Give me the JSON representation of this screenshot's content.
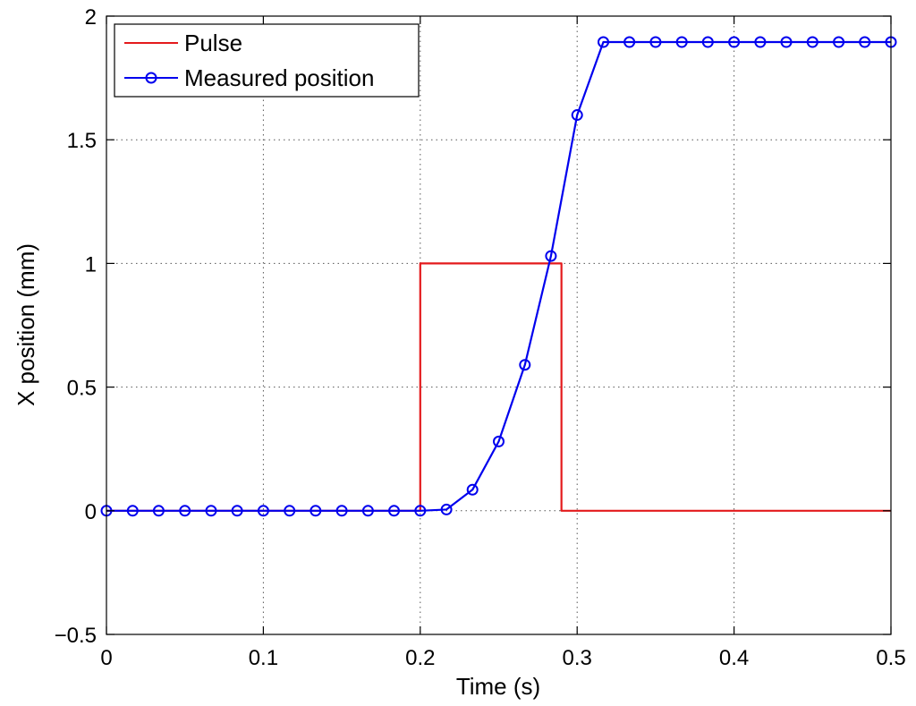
{
  "chart_data": {
    "type": "line",
    "title": "",
    "xlabel": "Time (s)",
    "ylabel": "X position (mm)",
    "xlim": [
      0,
      0.5
    ],
    "ylim": [
      -0.5,
      2
    ],
    "x_ticks": [
      0,
      0.1,
      0.2,
      0.3,
      0.4,
      0.5
    ],
    "x_tick_labels": [
      "0",
      "0.1",
      "0.2",
      "0.3",
      "0.4",
      "0.5"
    ],
    "y_ticks": [
      -0.5,
      0,
      0.5,
      1,
      1.5,
      2
    ],
    "y_tick_labels": [
      "−0.5",
      "0",
      "0.5",
      "1",
      "1.5",
      "2"
    ],
    "grid": true,
    "legend_position": "top-left",
    "series": [
      {
        "name": "Pulse",
        "color": "#e41a1c",
        "marker": "none",
        "x": [
          0,
          0.2,
          0.2,
          0.29,
          0.29,
          0.5
        ],
        "y": [
          0,
          0,
          1,
          1,
          0,
          0
        ]
      },
      {
        "name": "Measured position",
        "color": "#0000ee",
        "marker": "circle",
        "x": [
          0,
          0.0167,
          0.0333,
          0.05,
          0.0667,
          0.0833,
          0.1,
          0.1167,
          0.1333,
          0.15,
          0.1667,
          0.1833,
          0.2,
          0.2167,
          0.2333,
          0.25,
          0.2667,
          0.2833,
          0.3,
          0.3167,
          0.3333,
          0.35,
          0.3667,
          0.3833,
          0.4,
          0.4167,
          0.4333,
          0.45,
          0.4667,
          0.4833,
          0.5
        ],
        "y": [
          0,
          0,
          0,
          0,
          0,
          0,
          0,
          0,
          0,
          0,
          0,
          0,
          0,
          0.005,
          0.085,
          0.28,
          0.59,
          1.03,
          1.6,
          1.895,
          1.895,
          1.895,
          1.895,
          1.895,
          1.895,
          1.895,
          1.895,
          1.895,
          1.895,
          1.895,
          1.895
        ]
      }
    ]
  }
}
